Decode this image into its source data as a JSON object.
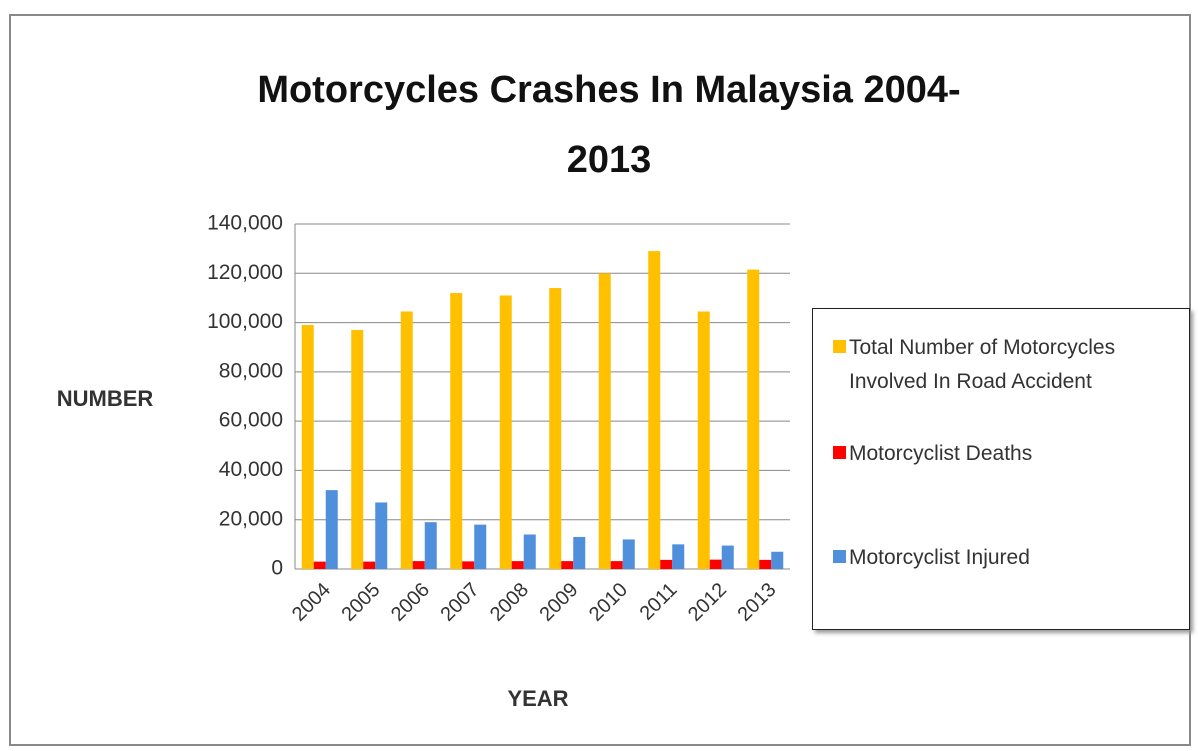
{
  "chart_data": {
    "type": "bar",
    "title": "Motorcycles Crashes In Malaysia 2004-2013",
    "x_label": "YEAR",
    "y_label": "NUMBER",
    "categories": [
      "2004",
      "2005",
      "2006",
      "2007",
      "2008",
      "2009",
      "2010",
      "2011",
      "2012",
      "2013"
    ],
    "series": [
      {
        "name": "Total Number of Motorcycles Involved In Road Accident",
        "color": "#ffc000",
        "values": [
          99000,
          97000,
          104500,
          112000,
          111000,
          114000,
          120000,
          129000,
          104500,
          121500
        ]
      },
      {
        "name": "Motorcyclist Deaths",
        "color": "#ff0000",
        "values": [
          3000,
          3000,
          3200,
          3100,
          3200,
          3200,
          3200,
          3700,
          3800,
          3700
        ]
      },
      {
        "name": "Motorcyclist Injured",
        "color": "#4f8fdc",
        "values": [
          32000,
          27000,
          19000,
          18000,
          14000,
          13000,
          12000,
          10000,
          9500,
          7000
        ]
      }
    ],
    "ylim": [
      0,
      140000
    ],
    "yticks": [
      0,
      {
        "value": 20000,
        "label": "20,000"
      },
      {
        "value": 40000,
        "label": "40,000"
      },
      {
        "value": 60000,
        "label": "60,000"
      },
      {
        "value": 80000,
        "label": "80,000"
      },
      {
        "value": 100000,
        "label": "100,000"
      },
      {
        "value": 120000,
        "label": "120,000"
      },
      {
        "value": 140000,
        "label": "140,000"
      }
    ],
    "grid": true
  }
}
